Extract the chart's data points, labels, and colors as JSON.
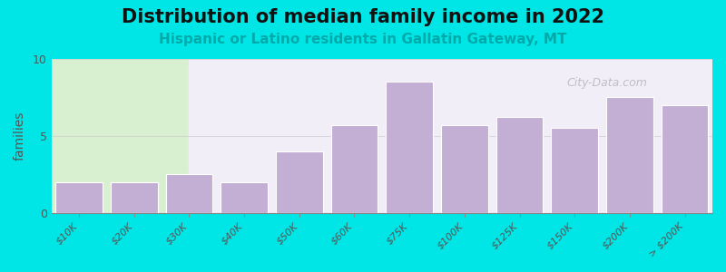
{
  "title": "Distribution of median family income in 2022",
  "subtitle": "Hispanic or Latino residents in Gallatin Gateway, MT",
  "categories": [
    "$10K",
    "$20K",
    "$30K",
    "$40K",
    "$50K",
    "$60K",
    "$75K",
    "$100K",
    "$125K",
    "$150K",
    "$200K",
    "> $200K"
  ],
  "values": [
    2,
    2,
    2.5,
    2,
    4,
    5.7,
    8.5,
    5.7,
    6.2,
    5.5,
    7.5,
    7
  ],
  "bar_color": "#c4afd4",
  "background_outer": "#00e5e5",
  "background_plot_right": "#f0f0f8",
  "background_plot_left": "#e8f5e8",
  "ylabel": "families",
  "ylim": [
    0,
    10
  ],
  "yticks": [
    0,
    5,
    10
  ],
  "title_fontsize": 15,
  "subtitle_fontsize": 11,
  "subtitle_color": "#00aaaa",
  "watermark_text": "City-Data.com",
  "watermark_color": "#aaaaaa"
}
